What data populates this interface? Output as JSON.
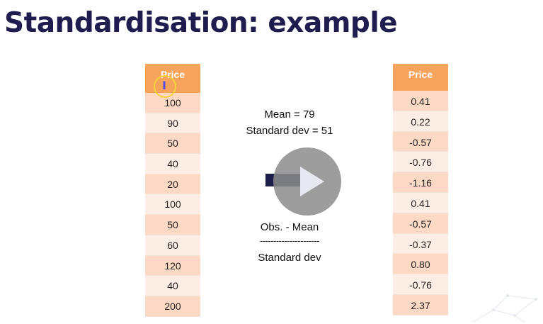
{
  "slide": {
    "title": "Standardisation: example"
  },
  "left_table": {
    "header": "Price",
    "values": [
      "100",
      "90",
      "50",
      "40",
      "20",
      "100",
      "50",
      "60",
      "120",
      "40",
      "200"
    ]
  },
  "right_table": {
    "header": "Price",
    "values": [
      "0.41",
      "0.22",
      "-0.57",
      "-0.76",
      "-1.16",
      "0.41",
      "-0.57",
      "-0.37",
      "0.80",
      "-0.76",
      "2.37"
    ]
  },
  "stats": {
    "mean": "Mean = 79",
    "std": "Standard dev = 51"
  },
  "formula": {
    "numerator": "Obs. - Mean",
    "divider": "----------------------",
    "denominator": "Standard dev"
  },
  "video": {
    "play_icon": "play-icon"
  },
  "colors": {
    "title": "#1f1d4f",
    "header": "#f6a35b",
    "row_odd": "#fbd9c4",
    "row_even": "#fdeee5",
    "arrow": "#1c1e4a"
  }
}
